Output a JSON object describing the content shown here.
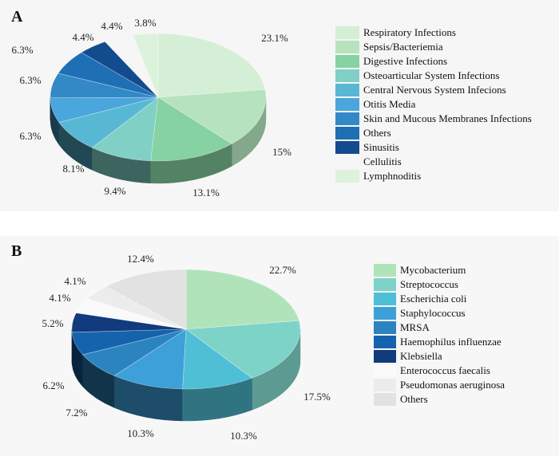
{
  "chart_data": [
    {
      "type": "pie",
      "panel": "A",
      "legend_position": "right",
      "categories": [
        "Respiratory Infections",
        "Sepsis/Bacteriemia",
        "Digestive Infections",
        "Osteoarticular System Infections",
        "Central Nervous System Infecions",
        "Otitis Media",
        "Skin and Mucous Membranes Infections",
        "Others",
        "Sinusitis",
        "Cellulitis",
        "Lymphnoditis"
      ],
      "values": [
        23.1,
        15,
        13.1,
        9.4,
        8.1,
        6.3,
        6.3,
        6.3,
        4.4,
        4.4,
        3.8
      ],
      "labels": [
        "23.1%",
        "15%",
        "13.1%",
        "9.4%",
        "8.1%",
        "6.3%",
        "6.3%",
        "6.3%",
        "4.4%",
        "4.4%",
        "3.8%"
      ],
      "colors": [
        "#d4efd6",
        "#b6e3bd",
        "#86d2a2",
        "#80d0c6",
        "#58b8d4",
        "#4aa6dc",
        "#3388c6",
        "#1f6fb5",
        "#134b8f",
        "#f6f6f6",
        "#dcf2dd"
      ],
      "title": "",
      "xlabel": "",
      "ylabel": ""
    },
    {
      "type": "pie",
      "panel": "B",
      "legend_position": "right",
      "categories": [
        "Mycobacterium",
        "Streptococcus",
        "Escherichia coli",
        "Staphylococcus",
        "MRSA",
        "Haemophilus influenzae",
        "Klebsiella",
        "Enterococcus faecalis",
        "Pseudomonas aeruginosa",
        "Others"
      ],
      "values": [
        22.7,
        17.5,
        10.3,
        10.3,
        7.2,
        6.2,
        5.2,
        4.1,
        4.1,
        12.4
      ],
      "labels": [
        "22.7%",
        "17.5%",
        "10.3%",
        "10.3%",
        "7.2%",
        "6.2%",
        "5.2%",
        "4.1%",
        "4.1%",
        "12.4%"
      ],
      "colors": [
        "#b1e3bb",
        "#7ed3c9",
        "#4fbfd6",
        "#3da0d8",
        "#2b84c0",
        "#1563ad",
        "#113b7c",
        "#fafafa",
        "#ececec",
        "#e2e2e2"
      ],
      "title": "",
      "xlabel": "",
      "ylabel": ""
    }
  ],
  "panels": {
    "a_label": "A",
    "b_label": "B"
  }
}
